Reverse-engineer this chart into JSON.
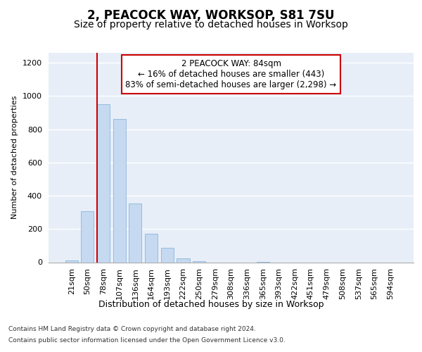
{
  "title": "2, PEACOCK WAY, WORKSOP, S81 7SU",
  "subtitle": "Size of property relative to detached houses in Worksop",
  "xlabel": "Distribution of detached houses by size in Worksop",
  "ylabel": "Number of detached properties",
  "categories": [
    "21sqm",
    "50sqm",
    "78sqm",
    "107sqm",
    "136sqm",
    "164sqm",
    "193sqm",
    "222sqm",
    "250sqm",
    "279sqm",
    "308sqm",
    "336sqm",
    "365sqm",
    "393sqm",
    "422sqm",
    "451sqm",
    "479sqm",
    "508sqm",
    "537sqm",
    "565sqm",
    "594sqm"
  ],
  "values": [
    10,
    305,
    950,
    860,
    355,
    170,
    85,
    25,
    5,
    0,
    0,
    0,
    4,
    0,
    0,
    0,
    0,
    0,
    0,
    0,
    0
  ],
  "bar_color": "#c5d9f1",
  "bar_edge_color": "#7bafd4",
  "vline_color": "#cc0000",
  "vline_x": 1.6,
  "annotation_text": "2 PEACOCK WAY: 84sqm\n← 16% of detached houses are smaller (443)\n83% of semi-detached houses are larger (2,298) →",
  "annotation_border_color": "#cc0000",
  "ylim": [
    0,
    1260
  ],
  "yticks": [
    0,
    200,
    400,
    600,
    800,
    1000,
    1200
  ],
  "footnote_line1": "Contains HM Land Registry data © Crown copyright and database right 2024.",
  "footnote_line2": "Contains public sector information licensed under the Open Government Licence v3.0.",
  "title_fontsize": 12,
  "subtitle_fontsize": 10,
  "xlabel_fontsize": 9,
  "ylabel_fontsize": 8,
  "tick_fontsize": 8,
  "annotation_fontsize": 8.5,
  "footnote_fontsize": 6.5,
  "plot_bg_color": "#e8eef8"
}
